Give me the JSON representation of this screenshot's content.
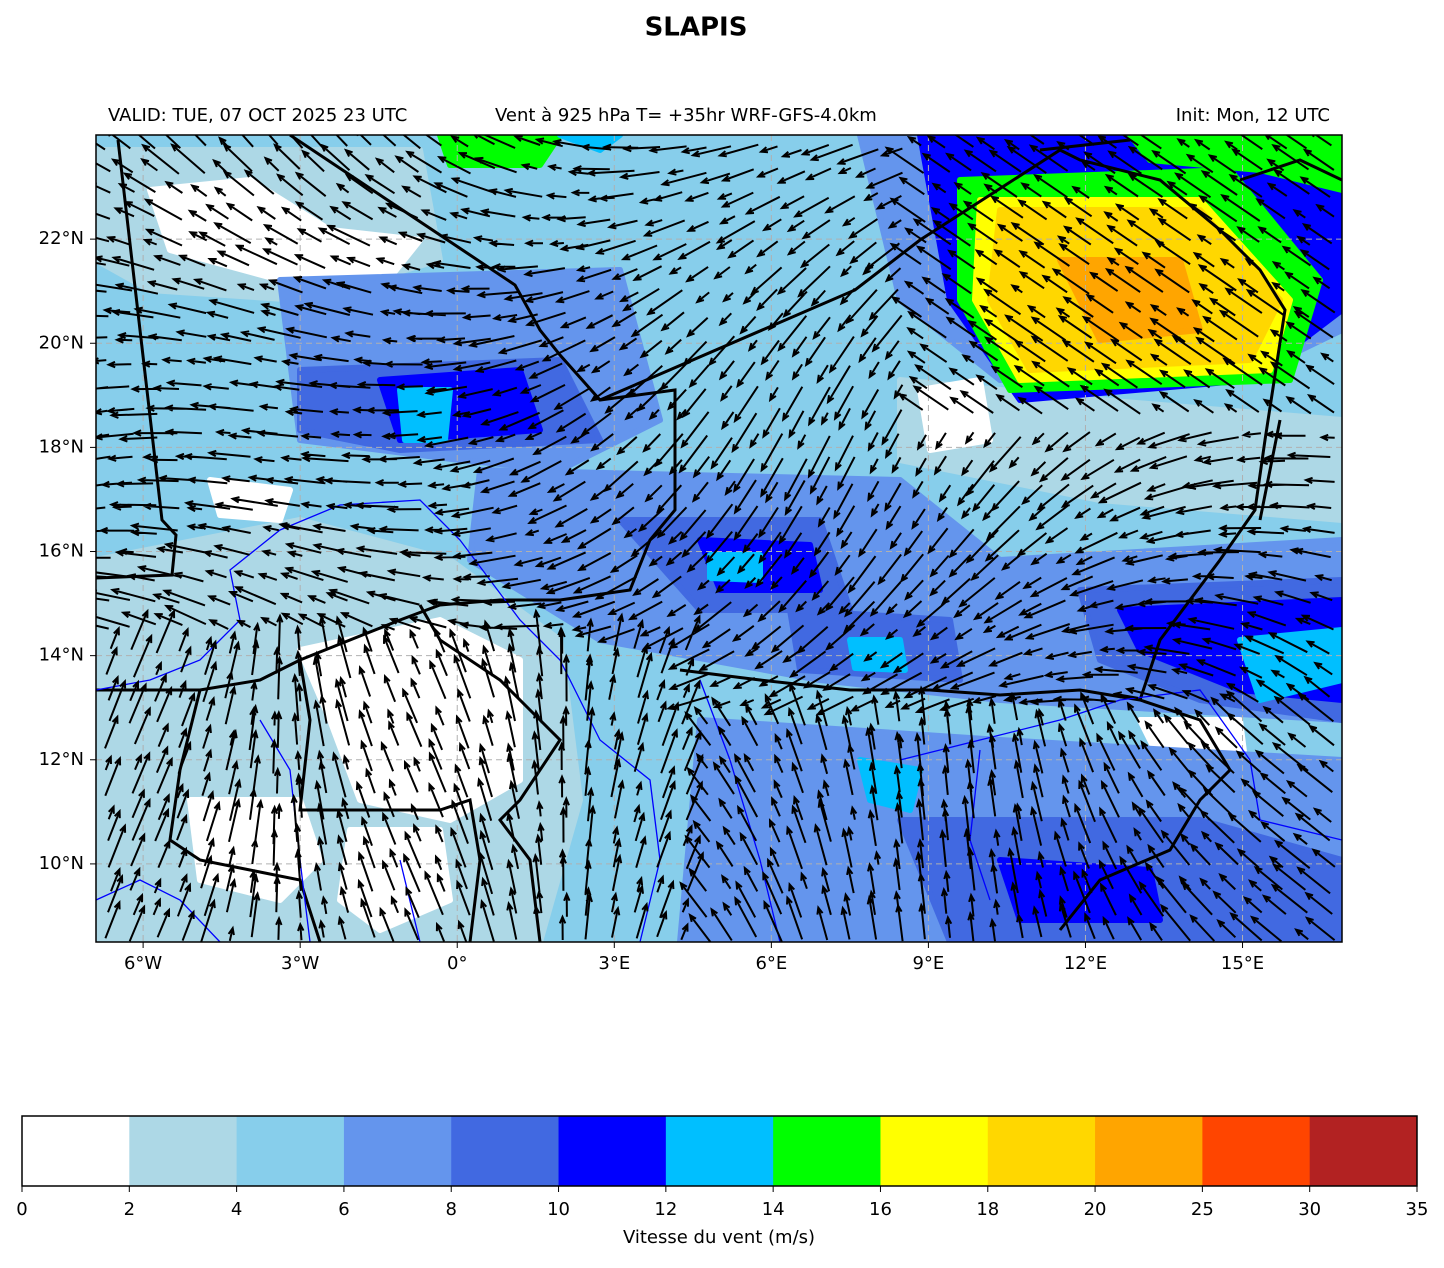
{
  "chart_data": {
    "type": "map",
    "title": "SLAPIS",
    "subtitle_left": "VALID: TUE, 07 OCT 2025 23 UTC",
    "subtitle_center": "Vent à 925 hPa T= +35hr  WRF-GFS-4.0km",
    "subtitle_right": "Init: Mon, 12 UTC",
    "xlim": [
      -6.9,
      16.9
    ],
    "ylim": [
      8.5,
      24
    ],
    "xticks": [
      {
        "value": -6,
        "label": "6°W"
      },
      {
        "value": -3,
        "label": "3°W"
      },
      {
        "value": 0,
        "label": "0°"
      },
      {
        "value": 3,
        "label": "3°E"
      },
      {
        "value": 6,
        "label": "6°E"
      },
      {
        "value": 9,
        "label": "9°E"
      },
      {
        "value": 12,
        "label": "12°E"
      },
      {
        "value": 15,
        "label": "15°E"
      }
    ],
    "yticks": [
      {
        "value": 10,
        "label": "10°N"
      },
      {
        "value": 12,
        "label": "12°N"
      },
      {
        "value": 14,
        "label": "14°N"
      },
      {
        "value": 16,
        "label": "16°N"
      },
      {
        "value": 18,
        "label": "18°N"
      },
      {
        "value": 20,
        "label": "20°N"
      },
      {
        "value": 22,
        "label": "22°N"
      }
    ],
    "grid": true,
    "colorbar": {
      "label": "Vitesse du vent (m/s)",
      "bounds": [
        0,
        2,
        4,
        6,
        8,
        10,
        12,
        14,
        16,
        18,
        20,
        25,
        30,
        35
      ],
      "colors": [
        "#ffffff",
        "#add8e6",
        "#87ceeb",
        "#6495ed",
        "#4169e1",
        "#0000ff",
        "#00bfff",
        "#00ff00",
        "#ffff00",
        "#ffd700",
        "#ffa500",
        "#ff4500",
        "#b22222"
      ]
    }
  }
}
